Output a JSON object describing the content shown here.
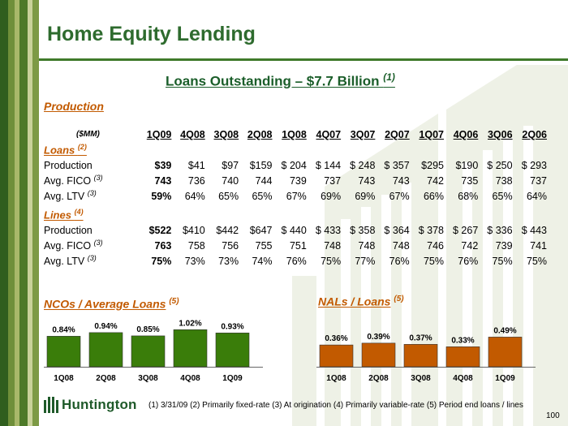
{
  "colors": {
    "green": "#3f7a2a",
    "dark_green": "#2e6b2e",
    "orange": "#c25a00",
    "bar_green": "#3a7d0a"
  },
  "page": {
    "title": "Home Equity Lending",
    "subtitle": "Loans Outstanding – $7.7 Billion ",
    "subtitle_note": "(1)",
    "production_heading": "Production",
    "footnote": "(1) 3/31/09   (2)  Primarily fixed-rate   (3)  At origination   (4)  Primarily variable-rate   (5)  Period end loans / lines",
    "page_number": "100",
    "logo_text": "Huntington"
  },
  "table": {
    "unit_label": "($MM)",
    "columns": [
      "1Q09",
      "4Q08",
      "3Q08",
      "2Q08",
      "1Q08",
      "4Q07",
      "3Q07",
      "2Q07",
      "1Q07",
      "4Q06",
      "3Q06",
      "2Q06"
    ],
    "loans_heading": "Loans ",
    "loans_note": "(2)",
    "loans_rows": [
      {
        "label": "Production",
        "note": "",
        "values": [
          "$39",
          "$41",
          "$97",
          "$159",
          "$  204",
          "$  144",
          "$  248",
          "$  357",
          "$295",
          "$190",
          "$  250",
          "$  293"
        ]
      },
      {
        "label": "Avg. FICO ",
        "note": "(3)",
        "values": [
          "743",
          "736",
          "740",
          "744",
          "739",
          "737",
          "743",
          "743",
          "742",
          "735",
          "738",
          "737"
        ]
      },
      {
        "label": "Avg. LTV ",
        "note": "(3)",
        "values": [
          "59%",
          "64%",
          "65%",
          "65%",
          "67%",
          "69%",
          "69%",
          "67%",
          "66%",
          "68%",
          "65%",
          "64%"
        ]
      }
    ],
    "lines_heading": "Lines ",
    "lines_note": "(4)",
    "lines_rows": [
      {
        "label": "Production",
        "note": "",
        "values": [
          "$522",
          "$410",
          "$442",
          "$647",
          "$  440",
          "$  433",
          "$  358",
          "$  364",
          "$  378",
          "$  267",
          "$  336",
          "$  443"
        ]
      },
      {
        "label": "Avg. FICO ",
        "note": "(3)",
        "values": [
          "763",
          "758",
          "756",
          "755",
          "751",
          "748",
          "748",
          "748",
          "746",
          "742",
          "739",
          "741"
        ]
      },
      {
        "label": "Avg. LTV ",
        "note": "(3)",
        "values": [
          "75%",
          "73%",
          "73%",
          "74%",
          "76%",
          "75%",
          "77%",
          "76%",
          "75%",
          "76%",
          "75%",
          "75%"
        ]
      }
    ]
  },
  "chart_data": [
    {
      "type": "bar",
      "title": "NCOs / Average Loans",
      "title_note": "(5)",
      "categories": [
        "1Q08",
        "2Q08",
        "3Q08",
        "4Q08",
        "1Q09"
      ],
      "values": [
        0.84,
        0.94,
        0.85,
        1.02,
        0.93
      ],
      "labels": [
        "0.84%",
        "0.94%",
        "0.85%",
        "1.02%",
        "0.93%"
      ],
      "color": "#3a7d0a"
    },
    {
      "type": "bar",
      "title": "NALs / Loans",
      "title_note": "(5)",
      "categories": [
        "1Q08",
        "2Q08",
        "3Q08",
        "4Q08",
        "1Q09"
      ],
      "values": [
        0.36,
        0.39,
        0.37,
        0.33,
        0.49
      ],
      "labels": [
        "0.36%",
        "0.39%",
        "0.37%",
        "0.33%",
        "0.49%"
      ],
      "color": "#c25a00"
    }
  ]
}
